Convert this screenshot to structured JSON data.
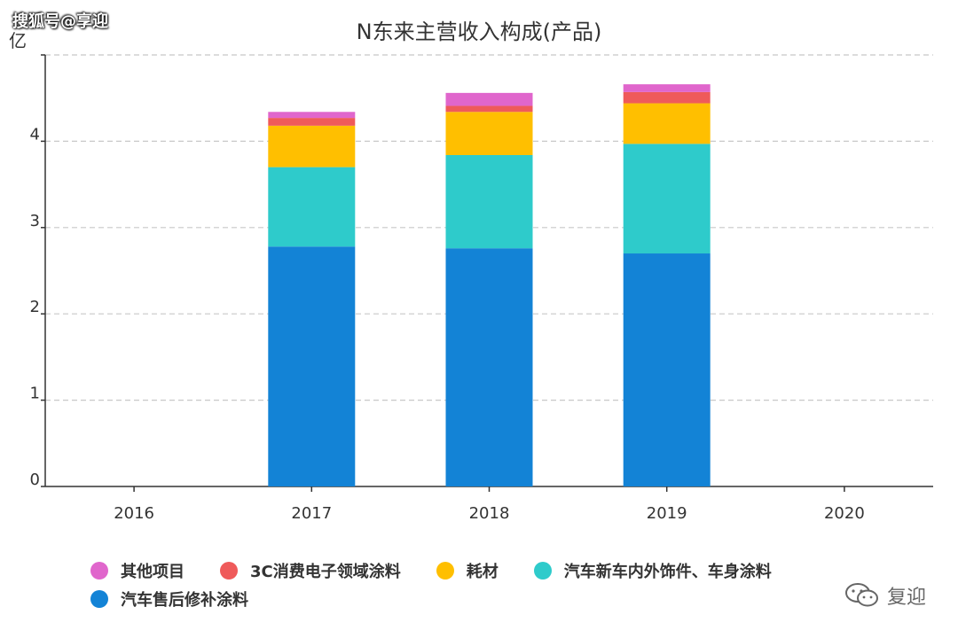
{
  "watermark_top": "搜狐号@享迎",
  "watermark_bottom": "复迎",
  "colors": {
    "其他项目": "#e066cc",
    "3C消费电子领域涂料": "#ef5a5a",
    "耗材": "#ffbf00",
    "汽车新车内外饰件、车身涂料": "#2ecbcb",
    "汽车售后修补涂料": "#1383d6"
  },
  "chart_data": {
    "type": "bar",
    "stacked": true,
    "title": "N东来主营收入构成(产品)",
    "ylabel": "亿",
    "categories": [
      "2016",
      "2017",
      "2018",
      "2019",
      "2020"
    ],
    "ylim": [
      0,
      5
    ],
    "yticks": [
      "0",
      "1",
      "2",
      "3",
      "4"
    ],
    "grid": true,
    "legend_position": "bottom",
    "series": [
      {
        "name": "汽车售后修补涂料",
        "values": [
          null,
          2.78,
          2.76,
          2.7,
          null
        ]
      },
      {
        "name": "汽车新车内外饰件、车身涂料",
        "values": [
          null,
          0.92,
          1.08,
          1.27,
          null
        ]
      },
      {
        "name": "耗材",
        "values": [
          null,
          0.48,
          0.5,
          0.47,
          null
        ]
      },
      {
        "name": "3C消费电子领域涂料",
        "values": [
          null,
          0.09,
          0.07,
          0.13,
          null
        ]
      },
      {
        "name": "其他项目",
        "values": [
          null,
          0.07,
          0.15,
          0.09,
          null
        ]
      }
    ]
  },
  "legend_rows": [
    [
      "其他项目",
      "3C消费电子领域涂料",
      "耗材",
      "汽车新车内外饰件、车身涂料"
    ],
    [
      "汽车售后修补涂料"
    ]
  ]
}
